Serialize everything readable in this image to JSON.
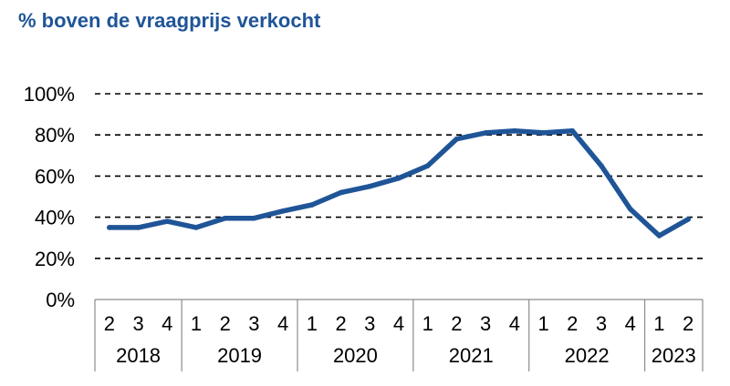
{
  "chart_data": {
    "type": "line",
    "title": "% boven de vraagprijs verkocht",
    "ylim": [
      0,
      100
    ],
    "yticks": [
      "0%",
      "20%",
      "40%",
      "60%",
      "80%",
      "100%"
    ],
    "grid": true,
    "years": [
      {
        "label": "2018",
        "quarters": [
          "2",
          "3",
          "4"
        ]
      },
      {
        "label": "2019",
        "quarters": [
          "1",
          "2",
          "3",
          "4"
        ]
      },
      {
        "label": "2020",
        "quarters": [
          "1",
          "2",
          "3",
          "4"
        ]
      },
      {
        "label": "2021",
        "quarters": [
          "1",
          "2",
          "3",
          "4"
        ]
      },
      {
        "label": "2022",
        "quarters": [
          "1",
          "2",
          "3",
          "4"
        ]
      },
      {
        "label": "2023",
        "quarters": [
          "1",
          "2"
        ]
      }
    ],
    "series": [
      {
        "values": [
          35,
          35,
          38,
          35,
          39.5,
          39.5,
          43,
          46,
          52,
          55,
          59,
          65,
          78,
          81,
          82,
          81,
          82,
          65,
          44,
          31,
          39
        ],
        "color": "#1f5597"
      }
    ]
  }
}
